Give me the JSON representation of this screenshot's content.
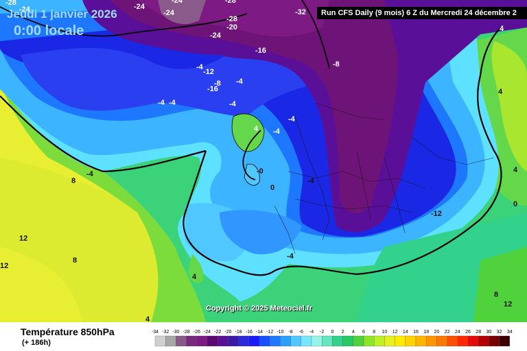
{
  "header": {
    "date": "Jeudi 1 janvier 2026",
    "time": "0:00 locale",
    "run": "Run CFS Daily (9 mois) 6 Z du Mercredi 24 décembre 2"
  },
  "map": {
    "copyright": "Copyright © 2025 Meteociel.fr",
    "labels": [
      "-28",
      "-24",
      "-24",
      "-24",
      "-24",
      "-28",
      "-32",
      "-28",
      "-20",
      "-24",
      "-16",
      "-8",
      "-4",
      "-12",
      "-16",
      "-8",
      "-4",
      "-4",
      "-4",
      "-4",
      "-4",
      "-4",
      "4",
      "-0",
      "-4",
      "-4",
      "0",
      "-12",
      "-4",
      "8",
      "4",
      "0",
      "12",
      "8",
      "12",
      "4",
      "4",
      "4",
      "8",
      "12",
      "4"
    ]
  },
  "footer": {
    "title": "Température 850hPa",
    "subtitle": "(+ 186h)"
  },
  "legend": {
    "ticks": [
      "-34",
      "-32",
      "-30",
      "-28",
      "-26",
      "-24",
      "-22",
      "-20",
      "-18",
      "-16",
      "-14",
      "-12",
      "-10",
      "-8",
      "-6",
      "-4",
      "-2",
      "0",
      "2",
      "4",
      "6",
      "8",
      "10",
      "12",
      "14",
      "16",
      "18",
      "20",
      "22",
      "24",
      "26",
      "28",
      "30",
      "32",
      "34"
    ],
    "colors": [
      "#d0d0d0",
      "#a8a8a8",
      "#8a5a8a",
      "#7a2a7a",
      "#7d1a84",
      "#5a0a6e",
      "#5a0f99",
      "#3a1aa6",
      "#2a2ad8",
      "#1a1aff",
      "#1450ff",
      "#1e78ff",
      "#28a0ff",
      "#50c8ff",
      "#78e6ff",
      "#96f4e8",
      "#64e6be",
      "#32d28c",
      "#28c864",
      "#50d23c",
      "#8ce628",
      "#bef028",
      "#e6f01e",
      "#ffeb00",
      "#ffd200",
      "#ffb400",
      "#ff9600",
      "#ff7800",
      "#ff5000",
      "#ff2800",
      "#e60a0a",
      "#b40000",
      "#780000",
      "#3c0000"
    ]
  }
}
